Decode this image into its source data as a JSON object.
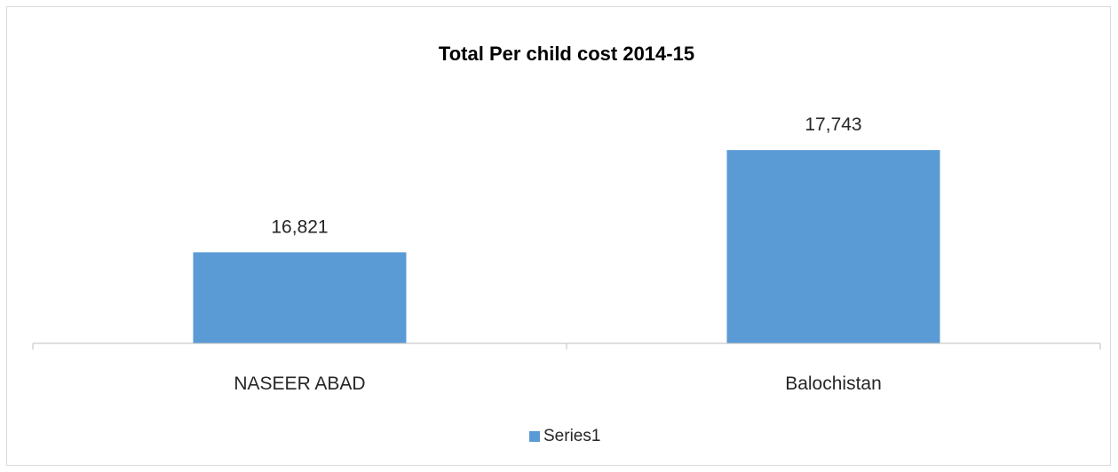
{
  "chart_data": {
    "type": "bar",
    "title": "Total Per child cost 2014-15",
    "categories": [
      "NASEER ABAD",
      "Balochistan"
    ],
    "series": [
      {
        "name": "Series1",
        "values": [
          16821,
          17743
        ],
        "value_labels": [
          "16,821",
          "17,743"
        ],
        "color": "#5b9bd5"
      }
    ],
    "xlabel": "",
    "ylabel": "",
    "ylim": [
      16000,
      18000
    ],
    "grid": false,
    "legend": "bottom"
  }
}
